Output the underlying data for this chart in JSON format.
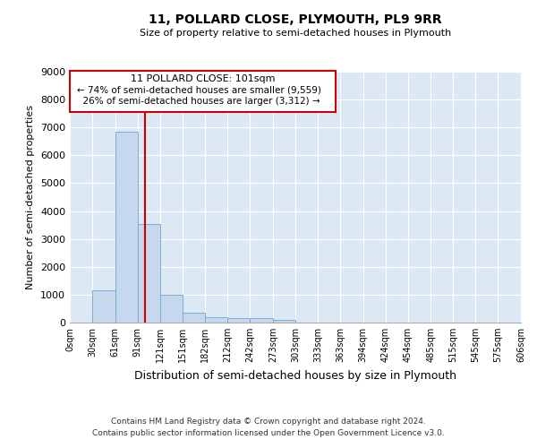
{
  "title": "11, POLLARD CLOSE, PLYMOUTH, PL9 9RR",
  "subtitle": "Size of property relative to semi-detached houses in Plymouth",
  "xlabel": "Distribution of semi-detached houses by size in Plymouth",
  "ylabel": "Number of semi-detached properties",
  "property_size": 101,
  "property_label": "11 POLLARD CLOSE: 101sqm",
  "pct_smaller": 74,
  "count_smaller": "9,559",
  "pct_larger": 26,
  "count_larger": "3,312",
  "bin_edges": [
    0,
    30,
    61,
    91,
    121,
    151,
    182,
    212,
    242,
    273,
    303,
    333,
    363,
    394,
    424,
    454,
    485,
    515,
    545,
    575,
    606
  ],
  "bar_heights": [
    0,
    1150,
    6850,
    3550,
    1000,
    350,
    200,
    150,
    150,
    100,
    0,
    0,
    0,
    0,
    0,
    0,
    0,
    0,
    0,
    0
  ],
  "bar_color": "#c5d8ed",
  "bar_edge_color": "#7aaed4",
  "line_color": "#cc0000",
  "annotation_box_color": "#ffffff",
  "annotation_box_edge": "#cc0000",
  "background_color": "#dde8f5",
  "ylim": [
    0,
    9000
  ],
  "yticks": [
    0,
    1000,
    2000,
    3000,
    4000,
    5000,
    6000,
    7000,
    8000,
    9000
  ],
  "footer_line1": "Contains HM Land Registry data © Crown copyright and database right 2024.",
  "footer_line2": "Contains public sector information licensed under the Open Government Licence v3.0."
}
